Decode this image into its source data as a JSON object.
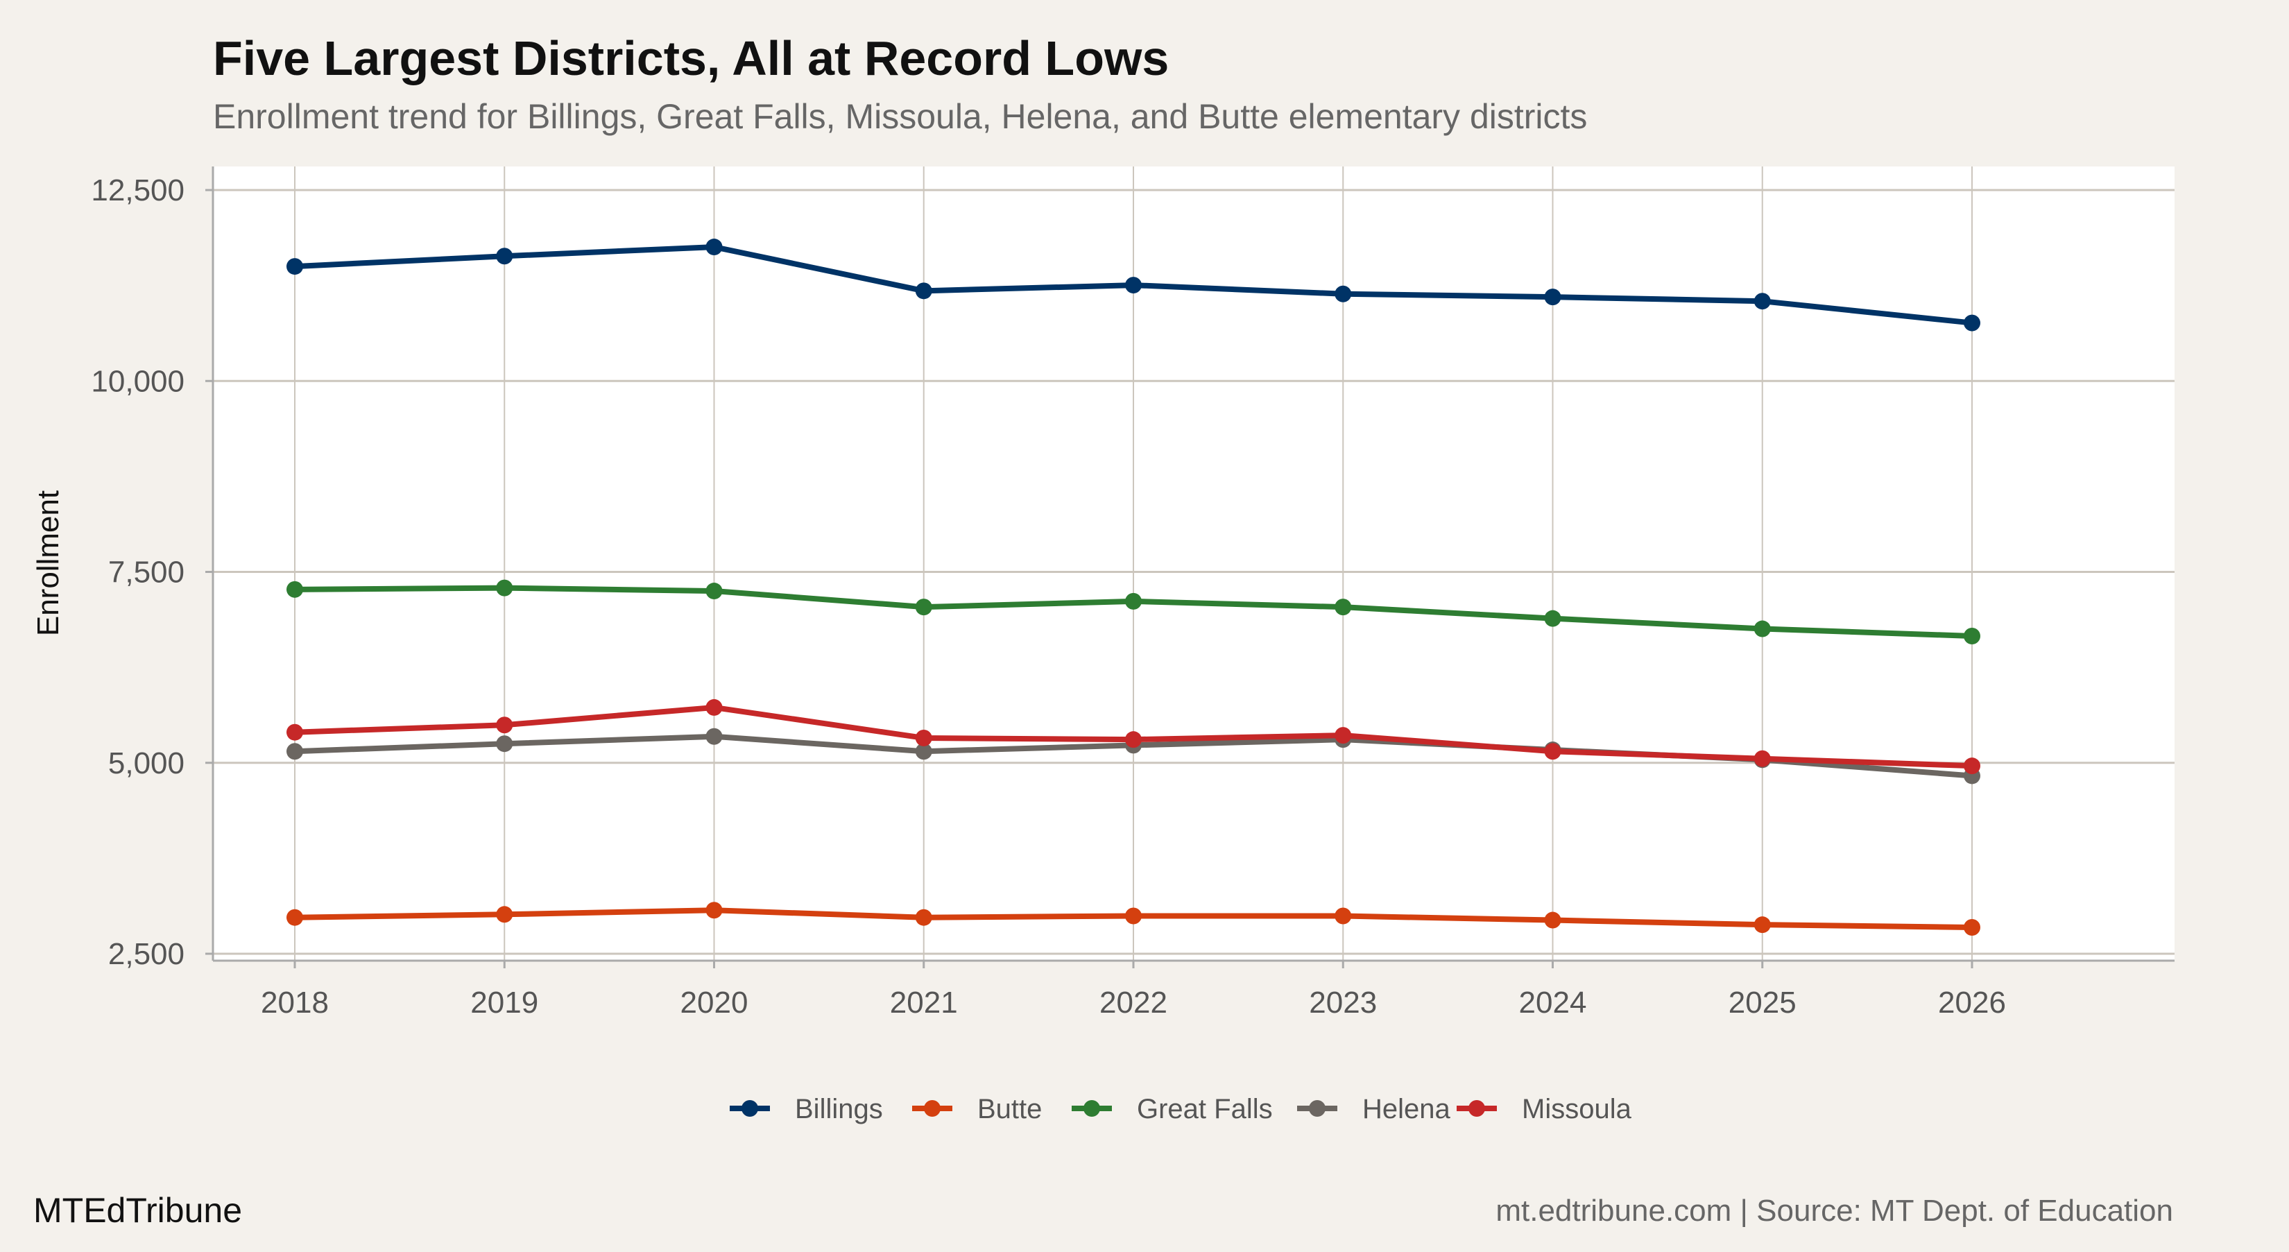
{
  "chart_data": {
    "type": "line",
    "title": "Five Largest Districts, All at Record Lows",
    "subtitle": "Enrollment trend for Billings, Great Falls, Missoula, Helena, and Butte elementary districts",
    "xlabel": "",
    "ylabel": "Enrollment",
    "x": [
      2018,
      2019,
      2020,
      2021,
      2022,
      2023,
      2024,
      2025,
      2026
    ],
    "x_tick_labels": [
      "2018",
      "2019",
      "2020",
      "2021",
      "2022",
      "2023",
      "2024",
      "2025",
      "2026"
    ],
    "y_ticks": [
      2500,
      5000,
      7500,
      10000,
      12500
    ],
    "y_tick_labels": [
      "2,500",
      "5,000",
      "7,500",
      "10,000",
      "12,500"
    ],
    "xlim": [
      2017.6,
      2026.95
    ],
    "ylim": [
      2300,
      12800
    ],
    "grid": true,
    "legend_position": "bottom",
    "series": [
      {
        "name": "Billings",
        "color": "#003366",
        "values": [
          11500,
          11635,
          11755,
          11180,
          11255,
          11140,
          11100,
          11045,
          10760
        ]
      },
      {
        "name": "Butte",
        "color": "#d4400f",
        "values": [
          2975,
          3015,
          3070,
          2975,
          2995,
          2995,
          2940,
          2880,
          2845
        ]
      },
      {
        "name": "Great Falls",
        "color": "#2e7d32",
        "values": [
          7270,
          7290,
          7250,
          7040,
          7115,
          7040,
          6890,
          6755,
          6660
        ]
      },
      {
        "name": "Helena",
        "color": "#6b6661",
        "values": [
          5150,
          5250,
          5345,
          5150,
          5230,
          5305,
          5170,
          5040,
          4830
        ]
      },
      {
        "name": "Missoula",
        "color": "#c62828",
        "values": [
          5400,
          5495,
          5725,
          5325,
          5305,
          5360,
          5150,
          5055,
          4960
        ]
      }
    ],
    "series_draw_order": [
      2,
      3,
      4,
      1,
      0
    ]
  },
  "footer": {
    "brand": "MTEdTribune",
    "source": "mt.edtribune.com | Source: MT Dept. of Education"
  }
}
